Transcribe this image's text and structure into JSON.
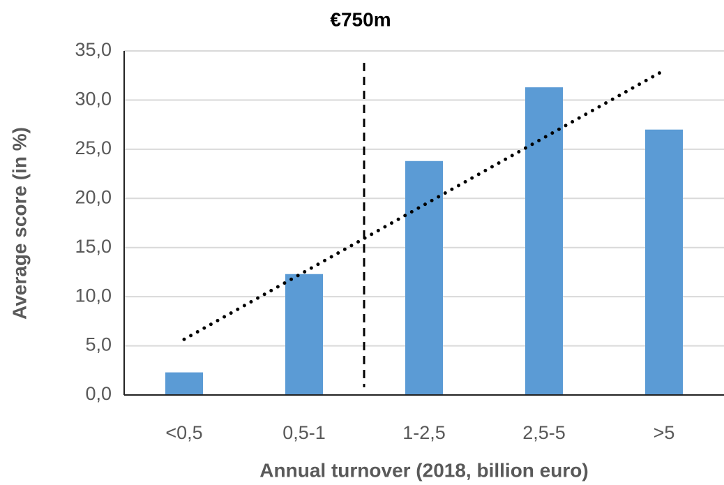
{
  "chart_data": {
    "type": "bar",
    "annotation": "€750m",
    "x_label": "Annual turnover (2018, billion euro)",
    "y_label": "Average score (in %)",
    "categories": [
      "<0,5",
      "0,5-1",
      "1-2,5",
      "2,5-5",
      ">5"
    ],
    "values": [
      2.3,
      12.3,
      23.8,
      31.3,
      27.0
    ],
    "color": "#5b9bd5",
    "ylim": [
      0,
      35
    ],
    "yticks": [
      {
        "value": 0,
        "label": "0,0"
      },
      {
        "value": 5,
        "label": "5,0"
      },
      {
        "value": 10,
        "label": "10,0"
      },
      {
        "value": 15,
        "label": "15,0"
      },
      {
        "value": 20,
        "label": "20,0"
      },
      {
        "value": 25,
        "label": "25,0"
      },
      {
        "value": 30,
        "label": "30,0"
      },
      {
        "value": 35,
        "label": "35,0"
      }
    ],
    "grid": true,
    "trendline": true
  }
}
